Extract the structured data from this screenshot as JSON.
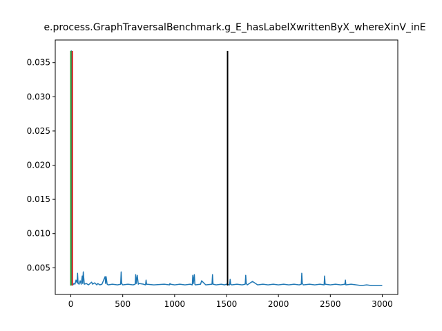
{
  "chart_data": {
    "type": "line",
    "title": "e.process.GraphTraversalBenchmark.g_E_hasLabelXwrittenByX_whereXinV_inE",
    "xlabel": "",
    "ylabel": "",
    "xlim": [
      -150,
      3150
    ],
    "ylim": [
      0.0011,
      0.0383
    ],
    "x_ticks": [
      0,
      500,
      1000,
      1500,
      2000,
      2500,
      3000
    ],
    "x_tick_labels": [
      "0",
      "500",
      "1000",
      "1500",
      "2000",
      "2500",
      "3000"
    ],
    "y_ticks": [
      0.005,
      0.01,
      0.015,
      0.02,
      0.025,
      0.03,
      0.035
    ],
    "y_tick_labels": [
      "0.005",
      "0.010",
      "0.015",
      "0.020",
      "0.025",
      "0.030",
      "0.035"
    ],
    "grid": false,
    "series": [
      {
        "color": "#1f77b4",
        "x": [
          0,
          5,
          10,
          15,
          20,
          30,
          40,
          50,
          60,
          65,
          70,
          80,
          90,
          100,
          110,
          115,
          120,
          130,
          150,
          170,
          200,
          210,
          230,
          250,
          260,
          270,
          280,
          300,
          330,
          335,
          340,
          350,
          360,
          400,
          450,
          480,
          485,
          490,
          500,
          550,
          600,
          620,
          625,
          630,
          640,
          650,
          660,
          700,
          720,
          725,
          730,
          800,
          900,
          950,
          955,
          960,
          1000,
          1050,
          1100,
          1150,
          1170,
          1175,
          1180,
          1190,
          1195,
          1200,
          1250,
          1260,
          1300,
          1360,
          1365,
          1370,
          1400,
          1450,
          1480,
          1500,
          1530,
          1535,
          1540,
          1550,
          1600,
          1650,
          1680,
          1685,
          1690,
          1700,
          1750,
          1800,
          1850,
          1900,
          1950,
          2000,
          2050,
          2100,
          2150,
          2200,
          2220,
          2225,
          2230,
          2240,
          2300,
          2350,
          2400,
          2440,
          2445,
          2450,
          2500,
          2550,
          2600,
          2640,
          2645,
          2650,
          2700,
          2750,
          2800,
          2850,
          2900,
          2950,
          3000
        ],
        "y": [
          0.0367,
          0.0367,
          0.0025,
          0.0026,
          0.0025,
          0.0027,
          0.0026,
          0.0032,
          0.0028,
          0.0042,
          0.0027,
          0.0026,
          0.0031,
          0.0026,
          0.0038,
          0.0027,
          0.0044,
          0.0026,
          0.0027,
          0.0025,
          0.0029,
          0.0026,
          0.0028,
          0.0025,
          0.0027,
          0.0026,
          0.0025,
          0.0026,
          0.0037,
          0.0027,
          0.0037,
          0.0026,
          0.0025,
          0.0026,
          0.0025,
          0.0026,
          0.0044,
          0.0027,
          0.0025,
          0.0026,
          0.0025,
          0.0026,
          0.004,
          0.0027,
          0.0039,
          0.0026,
          0.0027,
          0.0026,
          0.0025,
          0.0032,
          0.0026,
          0.0025,
          0.0026,
          0.0025,
          0.0027,
          0.0026,
          0.0025,
          0.0026,
          0.0025,
          0.0026,
          0.0025,
          0.0039,
          0.0027,
          0.004,
          0.0026,
          0.0025,
          0.0026,
          0.0031,
          0.0025,
          0.0026,
          0.004,
          0.0026,
          0.0025,
          0.0026,
          0.0025,
          0.0026,
          0.0025,
          0.0033,
          0.0026,
          0.0025,
          0.0026,
          0.0025,
          0.0026,
          0.0039,
          0.0027,
          0.0025,
          0.003,
          0.0025,
          0.0026,
          0.0025,
          0.0026,
          0.0025,
          0.0026,
          0.0025,
          0.0026,
          0.0025,
          0.0026,
          0.0042,
          0.0027,
          0.0025,
          0.0026,
          0.0025,
          0.0026,
          0.0025,
          0.0038,
          0.0026,
          0.0025,
          0.0026,
          0.0025,
          0.0026,
          0.0032,
          0.0025,
          0.0026,
          0.0025,
          0.0024,
          0.0025,
          0.0024,
          0.0024,
          0.0024
        ]
      }
    ],
    "vlines": [
      {
        "x": 0,
        "ymin": 0.0024,
        "ymax": 0.0367,
        "color": "#2ca02c"
      },
      {
        "x": 15,
        "ymin": 0.0024,
        "ymax": 0.0367,
        "color": "#d62728"
      },
      {
        "x": 1510,
        "ymin": 0.0024,
        "ymax": 0.0367,
        "color": "#000000"
      }
    ]
  }
}
